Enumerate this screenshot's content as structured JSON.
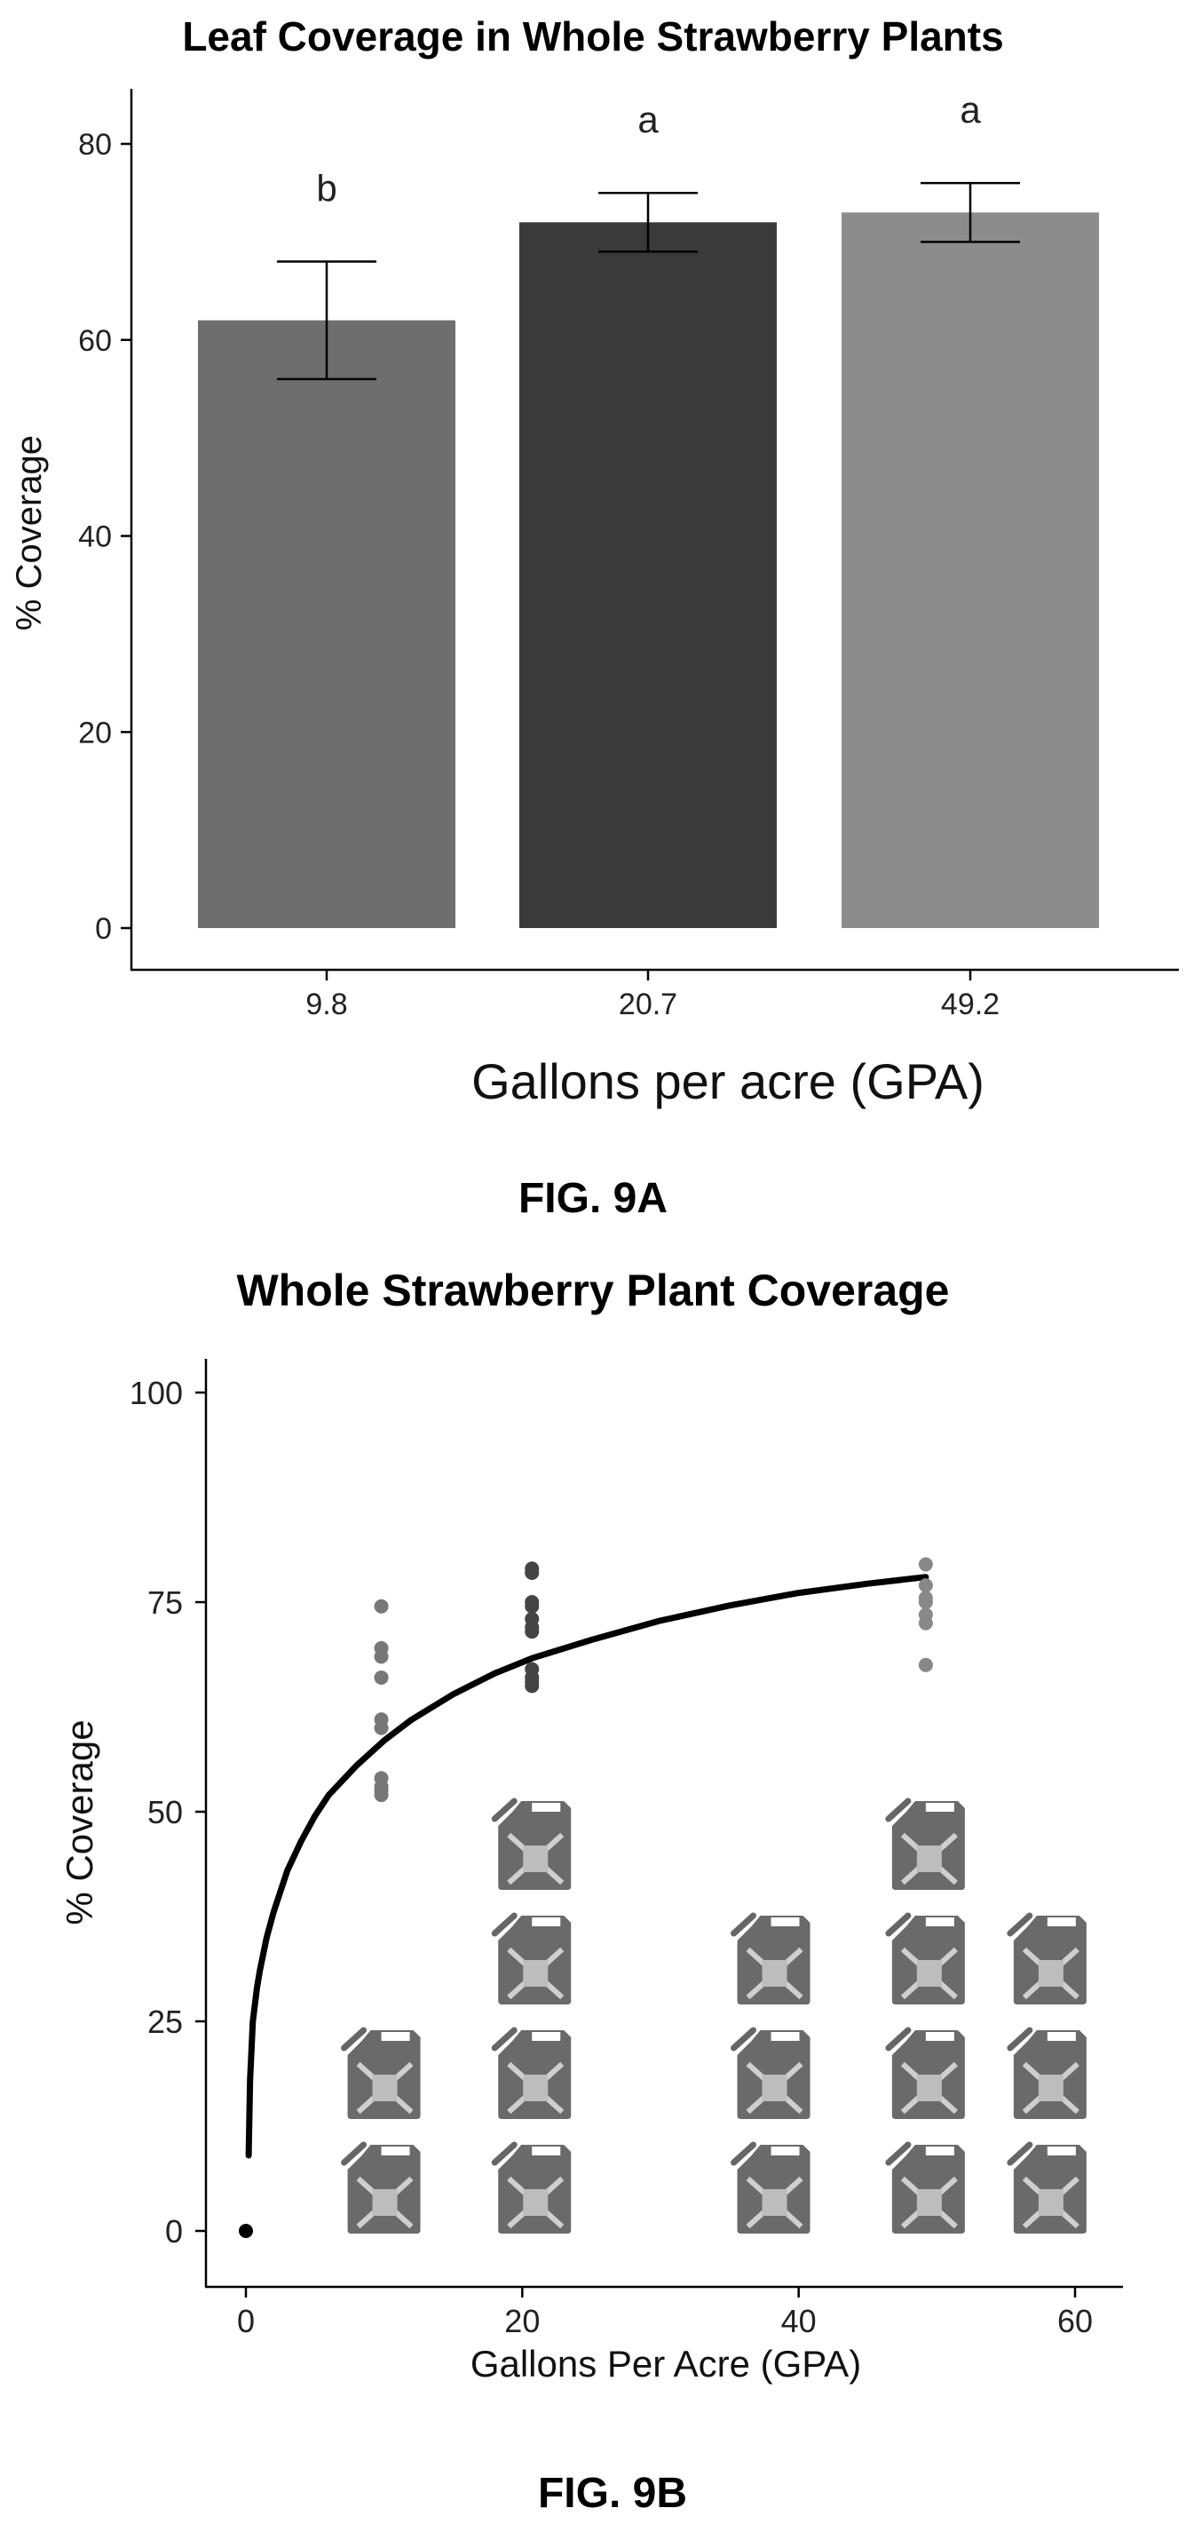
{
  "chart_data": [
    {
      "type": "bar",
      "title": "Leaf Coverage in Whole Strawberry Plants",
      "xlabel": "Gallons per acre (GPA)",
      "ylabel": "% Coverage",
      "categories": [
        "9.8",
        "20.7",
        "49.2"
      ],
      "values": [
        62,
        72,
        73
      ],
      "error_low": [
        56,
        69,
        70
      ],
      "error_high": [
        68,
        75,
        76
      ],
      "significance_letters": [
        "b",
        "a",
        "a"
      ],
      "bar_colors": [
        "#6e6e6e",
        "#3a3a3a",
        "#8c8c8c"
      ],
      "ylim": [
        0,
        85
      ],
      "yticks": [
        0,
        20,
        40,
        60,
        80
      ],
      "grid": false,
      "caption": "FIG. 9A"
    },
    {
      "type": "scatter",
      "title": "Whole Strawberry Plant Coverage",
      "xlabel": "Gallons Per Acre (GPA)",
      "ylabel": "% Coverage",
      "xlim": [
        -2,
        63
      ],
      "ylim": [
        -4,
        104
      ],
      "xticks": [
        0,
        20,
        40,
        60
      ],
      "yticks": [
        0,
        25,
        50,
        75,
        100
      ],
      "grid": false,
      "series": [
        {
          "color": "#000000",
          "x": [
            0
          ],
          "y": [
            0
          ]
        },
        {
          "color": "#777777",
          "x": [
            9.8,
            9.8,
            9.8,
            9.8,
            9.8,
            9.8,
            9.8,
            9.8,
            9.8,
            9.8
          ],
          "y": [
            74.5,
            69.5,
            68.5,
            66,
            61,
            60,
            54,
            53,
            52.5,
            52
          ]
        },
        {
          "color": "#444444",
          "x": [
            20.7,
            20.7,
            20.7,
            20.7,
            20.7,
            20.7,
            20.7,
            20.7,
            20.7,
            20.7,
            20.7
          ],
          "y": [
            79,
            78.5,
            75,
            74.5,
            73,
            72,
            71.5,
            67,
            66,
            65.5,
            65
          ]
        },
        {
          "color": "#888888",
          "x": [
            49.2,
            49.2,
            49.2,
            49.2,
            49.2,
            49.2,
            49.2
          ],
          "y": [
            79.5,
            77,
            75.5,
            75,
            73.5,
            72.5,
            67.5
          ]
        }
      ],
      "fit_curve": {
        "color": "#000000",
        "x": [
          0.2,
          0.3,
          0.5,
          0.8,
          1,
          1.5,
          2,
          3,
          4,
          5,
          6,
          8,
          10,
          12,
          15,
          18,
          20.7,
          25,
          30,
          35,
          40,
          45,
          49.2
        ],
        "y": [
          9,
          18,
          25,
          29,
          31,
          35,
          38,
          43,
          46.5,
          49.5,
          52,
          55.5,
          58.5,
          61,
          64,
          66.5,
          68.3,
          70.5,
          72.8,
          74.6,
          76.1,
          77.2,
          78
        ]
      },
      "jug_icon_counts": [
        {
          "x": 9.8,
          "count": 2
        },
        {
          "x": 20.7,
          "count": 4
        },
        {
          "x": 38,
          "count": 3
        },
        {
          "x": 49.2,
          "count": 4
        },
        {
          "x": 58,
          "count": 3
        }
      ],
      "caption": "FIG. 9B"
    }
  ]
}
